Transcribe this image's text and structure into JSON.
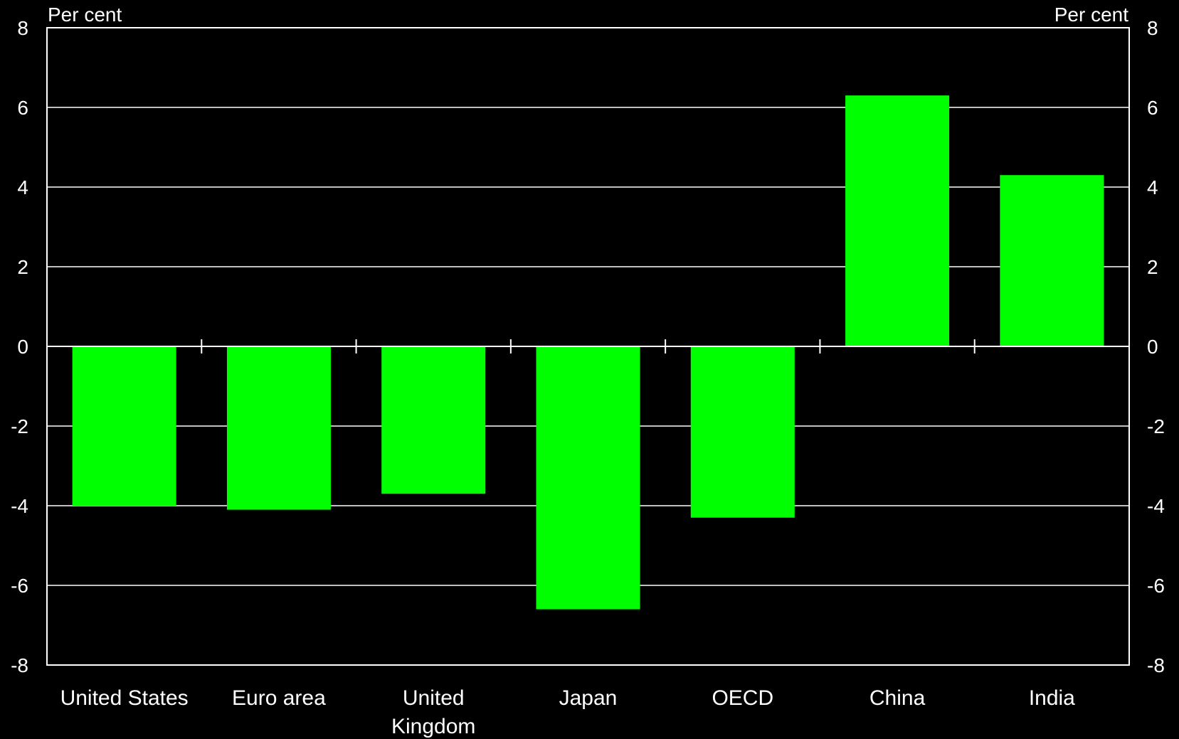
{
  "colors": {
    "background": "#000000",
    "bar": "#00ff00",
    "axis": "#ffffff",
    "grid": "#ffffff",
    "text": "#ffffff"
  },
  "chart_data": {
    "type": "bar",
    "title": "",
    "xlabel": "",
    "ylabel_left": "Per cent",
    "ylabel_right": "Per cent",
    "categories": [
      [
        "United States"
      ],
      [
        "Euro area"
      ],
      [
        "United",
        "Kingdom"
      ],
      [
        "Japan"
      ],
      [
        "OECD"
      ],
      [
        "China"
      ],
      [
        "India"
      ]
    ],
    "values": [
      -4.0,
      -4.1,
      -3.7,
      -6.6,
      -4.3,
      6.3,
      4.3
    ],
    "ylim": [
      -8,
      8
    ],
    "yticks": [
      8,
      6,
      4,
      2,
      0,
      -2,
      -4,
      -6,
      -8
    ],
    "grid": true,
    "legend": "none"
  }
}
